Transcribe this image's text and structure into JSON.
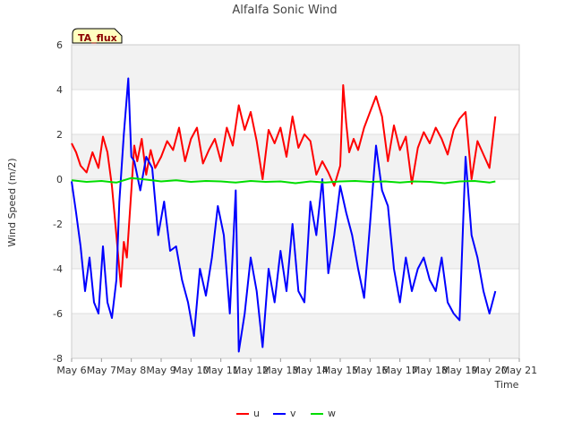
{
  "chart_data": {
    "type": "line",
    "title": "Alfalfa Sonic Wind",
    "xlabel": "Time",
    "ylabel": "Wind Speed (m/2)",
    "ylim": [
      -8,
      6
    ],
    "xlim": [
      0,
      15
    ],
    "yticks": [
      6,
      4,
      2,
      0,
      -2,
      -4,
      -6,
      -8
    ],
    "xtick_labels": [
      "May 6",
      "May 7",
      "May 8",
      "May 9",
      "May 10",
      "May 11",
      "May 12",
      "May 13",
      "May 14",
      "May 15",
      "May 16",
      "May 17",
      "May 18",
      "May 19",
      "May 20",
      "May 21"
    ],
    "grid": true,
    "badge": "TA_flux",
    "legend": {
      "position": "bottom",
      "items": [
        "u",
        "v",
        "w"
      ]
    },
    "series": [
      {
        "name": "u",
        "color": "#ff0000",
        "x": [
          0,
          0.15,
          0.3,
          0.5,
          0.7,
          0.9,
          1.05,
          1.2,
          1.35,
          1.5,
          1.65,
          1.75,
          1.85,
          2.0,
          2.1,
          2.2,
          2.35,
          2.5,
          2.65,
          2.8,
          3.0,
          3.2,
          3.4,
          3.6,
          3.8,
          4.0,
          4.2,
          4.4,
          4.6,
          4.8,
          5.0,
          5.2,
          5.4,
          5.6,
          5.8,
          6.0,
          6.2,
          6.4,
          6.6,
          6.8,
          7.0,
          7.2,
          7.4,
          7.6,
          7.8,
          8.0,
          8.2,
          8.4,
          8.6,
          8.8,
          9.0,
          9.1,
          9.2,
          9.3,
          9.45,
          9.6,
          9.8,
          10.0,
          10.2,
          10.4,
          10.6,
          10.8,
          11.0,
          11.2,
          11.4,
          11.6,
          11.8,
          12.0,
          12.2,
          12.4,
          12.6,
          12.8,
          13.0,
          13.2,
          13.4,
          13.6,
          13.8,
          14.0,
          14.2
        ],
        "y": [
          1.6,
          1.2,
          0.6,
          0.3,
          1.2,
          0.5,
          1.9,
          1.2,
          -0.3,
          -2.5,
          -4.8,
          -2.8,
          -3.5,
          -0.5,
          1.5,
          0.8,
          1.8,
          0.2,
          1.3,
          0.5,
          1.0,
          1.7,
          1.3,
          2.3,
          0.8,
          1.8,
          2.3,
          0.7,
          1.3,
          1.8,
          0.8,
          2.3,
          1.5,
          3.3,
          2.2,
          3.0,
          1.7,
          0.0,
          2.2,
          1.6,
          2.3,
          1.0,
          2.8,
          1.4,
          2.0,
          1.7,
          0.2,
          0.8,
          0.3,
          -0.3,
          0.6,
          4.2,
          2.5,
          1.2,
          1.8,
          1.3,
          2.3,
          3.0,
          3.7,
          2.8,
          0.8,
          2.4,
          1.3,
          1.9,
          -0.2,
          1.4,
          2.1,
          1.6,
          2.3,
          1.8,
          1.1,
          2.2,
          2.7,
          3.0,
          0.0,
          1.7,
          1.1,
          0.5,
          2.8
        ]
      },
      {
        "name": "v",
        "color": "#0000ff",
        "x": [
          0,
          0.15,
          0.3,
          0.45,
          0.6,
          0.75,
          0.9,
          1.05,
          1.2,
          1.35,
          1.5,
          1.6,
          1.75,
          1.9,
          2.0,
          2.1,
          2.3,
          2.5,
          2.7,
          2.9,
          3.1,
          3.3,
          3.5,
          3.7,
          3.9,
          4.1,
          4.3,
          4.5,
          4.7,
          4.9,
          5.1,
          5.3,
          5.5,
          5.6,
          5.8,
          6.0,
          6.2,
          6.4,
          6.6,
          6.8,
          7.0,
          7.2,
          7.4,
          7.6,
          7.8,
          8.0,
          8.2,
          8.4,
          8.6,
          8.8,
          9.0,
          9.2,
          9.4,
          9.6,
          9.8,
          10.0,
          10.2,
          10.4,
          10.6,
          10.8,
          11.0,
          11.2,
          11.4,
          11.6,
          11.8,
          12.0,
          12.2,
          12.4,
          12.6,
          12.8,
          13.0,
          13.2,
          13.4,
          13.6,
          13.8,
          14.0,
          14.2
        ],
        "y": [
          -0.1,
          -1.5,
          -3.0,
          -5.0,
          -3.5,
          -5.5,
          -6.0,
          -3.0,
          -5.5,
          -6.2,
          -4.5,
          -1.0,
          2.0,
          4.5,
          1.0,
          0.8,
          -0.5,
          1.0,
          0.5,
          -2.5,
          -1.0,
          -3.2,
          -3.0,
          -4.5,
          -5.5,
          -7.0,
          -4.0,
          -5.2,
          -3.5,
          -1.2,
          -2.5,
          -6.0,
          -0.5,
          -7.7,
          -6.0,
          -3.5,
          -5.0,
          -7.5,
          -4.0,
          -5.5,
          -3.2,
          -5.0,
          -2.0,
          -5.0,
          -5.5,
          -1.0,
          -2.5,
          0.0,
          -4.2,
          -2.5,
          -0.3,
          -1.5,
          -2.5,
          -4.0,
          -5.3,
          -2.0,
          1.5,
          -0.5,
          -1.2,
          -4.0,
          -5.5,
          -3.5,
          -5.0,
          -4.0,
          -3.5,
          -4.5,
          -5.0,
          -3.5,
          -5.5,
          -6.0,
          -6.3,
          1.0,
          -2.5,
          -3.5,
          -5.0,
          -6.0,
          -5.0
        ]
      },
      {
        "name": "w",
        "color": "#00dd00",
        "x": [
          0,
          0.5,
          1.0,
          1.5,
          2.0,
          2.5,
          3.0,
          3.5,
          4.0,
          4.5,
          5.0,
          5.5,
          6.0,
          6.5,
          7.0,
          7.5,
          8.0,
          8.5,
          9.0,
          9.5,
          10.0,
          10.5,
          11.0,
          11.5,
          12.0,
          12.5,
          13.0,
          13.5,
          14.0,
          14.2
        ],
        "y": [
          -0.05,
          -0.12,
          -0.08,
          -0.15,
          0.05,
          -0.02,
          -0.1,
          -0.05,
          -0.12,
          -0.08,
          -0.1,
          -0.15,
          -0.08,
          -0.12,
          -0.1,
          -0.18,
          -0.1,
          -0.15,
          -0.1,
          -0.08,
          -0.12,
          -0.1,
          -0.15,
          -0.1,
          -0.12,
          -0.18,
          -0.1,
          -0.08,
          -0.15,
          -0.1
        ]
      }
    ]
  }
}
